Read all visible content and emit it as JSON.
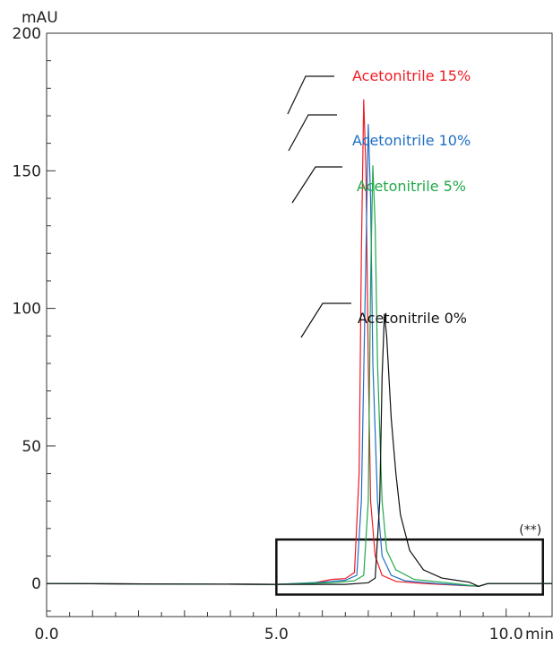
{
  "chart_data": {
    "type": "line",
    "ylabel": "mAU",
    "xlabel": "min",
    "xlim": [
      0,
      11
    ],
    "ylim": [
      -12,
      200
    ],
    "x_ticks": [
      {
        "value": 0,
        "label": "0.0"
      },
      {
        "value": 5,
        "label": "5.0"
      },
      {
        "value": 10,
        "label": "10.0"
      }
    ],
    "y_ticks": [
      {
        "value": 0,
        "label": "0"
      },
      {
        "value": 50,
        "label": "50"
      },
      {
        "value": 100,
        "label": "100"
      },
      {
        "value": 150,
        "label": "150"
      },
      {
        "value": 200,
        "label": "200"
      }
    ],
    "grid": false,
    "annotation": {
      "label": "(**)",
      "x_range": [
        5.0,
        10.8
      ],
      "y_range": [
        -4,
        16
      ]
    },
    "series": [
      {
        "name": "Acetonitrile 15%",
        "color": "#ee1c25",
        "peak": {
          "x": 6.9,
          "y": 176
        },
        "points": [
          [
            0,
            0
          ],
          [
            5.0,
            -0.3
          ],
          [
            5.8,
            0.2
          ],
          [
            6.2,
            1.5
          ],
          [
            6.5,
            1.8
          ],
          [
            6.7,
            4
          ],
          [
            6.8,
            40
          ],
          [
            6.85,
            120
          ],
          [
            6.9,
            176
          ],
          [
            6.95,
            150
          ],
          [
            7.0,
            80
          ],
          [
            7.05,
            30
          ],
          [
            7.15,
            10
          ],
          [
            7.3,
            3
          ],
          [
            7.6,
            0.8
          ],
          [
            8.2,
            0
          ],
          [
            9.4,
            -1
          ],
          [
            9.6,
            0
          ],
          [
            11,
            0
          ]
        ]
      },
      {
        "name": "Acetonitrile 10%",
        "color": "#1f6fc5",
        "peak": {
          "x": 7.0,
          "y": 167
        },
        "points": [
          [
            0,
            0
          ],
          [
            5.0,
            -0.3
          ],
          [
            6.0,
            0.5
          ],
          [
            6.5,
            1.2
          ],
          [
            6.75,
            3
          ],
          [
            6.85,
            30
          ],
          [
            6.95,
            120
          ],
          [
            7.0,
            167
          ],
          [
            7.05,
            140
          ],
          [
            7.1,
            80
          ],
          [
            7.2,
            30
          ],
          [
            7.3,
            10
          ],
          [
            7.5,
            3
          ],
          [
            7.8,
            1
          ],
          [
            8.5,
            0
          ],
          [
            9.4,
            -1
          ],
          [
            9.6,
            0
          ],
          [
            11,
            0
          ]
        ]
      },
      {
        "name": "Acetonitrile 5%",
        "color": "#22a84a",
        "peak": {
          "x": 7.1,
          "y": 152
        },
        "points": [
          [
            0,
            0
          ],
          [
            5.0,
            -0.3
          ],
          [
            6.2,
            0.3
          ],
          [
            6.7,
            1
          ],
          [
            6.9,
            3
          ],
          [
            7.0,
            30
          ],
          [
            7.05,
            110
          ],
          [
            7.1,
            152
          ],
          [
            7.15,
            130
          ],
          [
            7.2,
            80
          ],
          [
            7.3,
            30
          ],
          [
            7.4,
            12
          ],
          [
            7.6,
            5
          ],
          [
            8.0,
            1.5
          ],
          [
            8.6,
            0.5
          ],
          [
            9.4,
            -1
          ],
          [
            9.6,
            0
          ],
          [
            11,
            0
          ]
        ]
      },
      {
        "name": "Acetonitrile 0%",
        "color": "#111111",
        "peak": {
          "x": 7.35,
          "y": 98
        },
        "points": [
          [
            0,
            0
          ],
          [
            5.0,
            -0.3
          ],
          [
            6.5,
            -0.3
          ],
          [
            7.0,
            0.3
          ],
          [
            7.15,
            2
          ],
          [
            7.25,
            30
          ],
          [
            7.3,
            75
          ],
          [
            7.35,
            98
          ],
          [
            7.4,
            90
          ],
          [
            7.5,
            60
          ],
          [
            7.6,
            40
          ],
          [
            7.7,
            25
          ],
          [
            7.9,
            12
          ],
          [
            8.2,
            5
          ],
          [
            8.6,
            2
          ],
          [
            9.2,
            0.5
          ],
          [
            9.4,
            -1
          ],
          [
            9.6,
            0
          ],
          [
            11,
            0
          ]
        ]
      }
    ]
  }
}
